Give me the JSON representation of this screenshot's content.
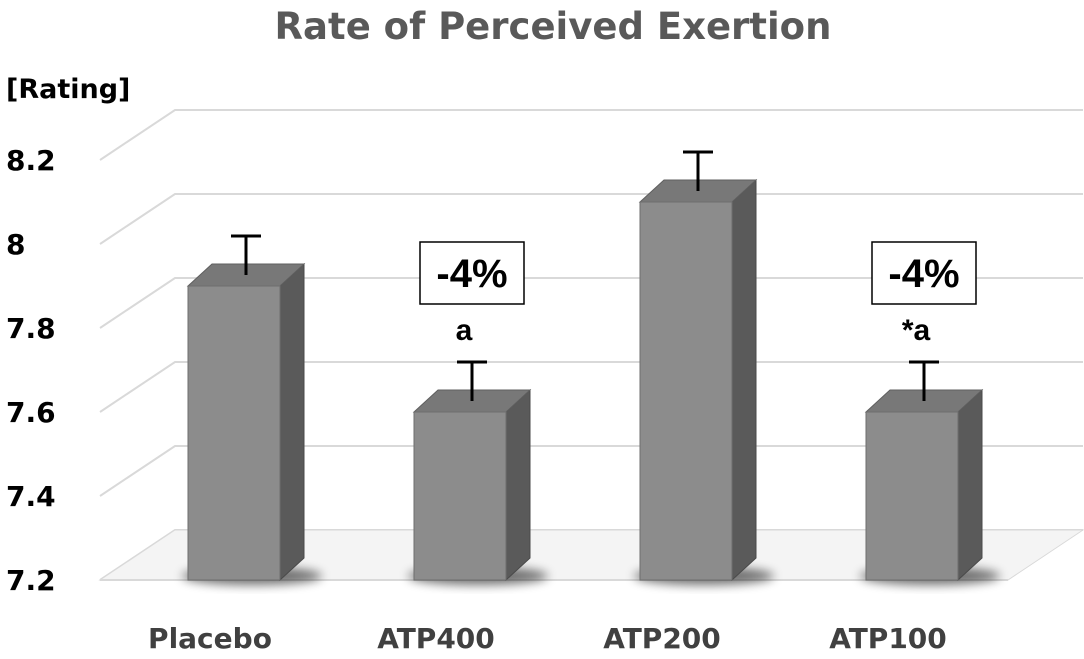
{
  "chart_data": {
    "type": "bar",
    "title": "Rate of Perceived Exertion",
    "ylabel": "[Rating]",
    "xlabel": "",
    "categories": [
      "Placebo",
      "ATP400",
      "ATP200",
      "ATP100"
    ],
    "values": [
      7.9,
      7.6,
      8.1,
      7.6
    ],
    "errors": [
      0.1,
      0.1,
      0.1,
      0.1
    ],
    "ylim": [
      7.2,
      8.2
    ],
    "yticks": [
      7.2,
      7.4,
      7.6,
      7.8,
      8.0,
      8.2
    ],
    "ytick_labels": [
      "7.2",
      "7.4",
      "7.6",
      "7.8",
      "8",
      "8.2"
    ],
    "significance_labels": [
      "",
      "a",
      "",
      "*a"
    ],
    "change_labels": [
      "",
      "-4%",
      "",
      "-4%"
    ],
    "grid": true,
    "style": "3d-column",
    "colors": {
      "bar_front": "#8c8c8c",
      "bar_side": "#5a5a5a",
      "bar_top": "#787878",
      "grid": "#d9d9d9",
      "error": "#000000"
    }
  }
}
